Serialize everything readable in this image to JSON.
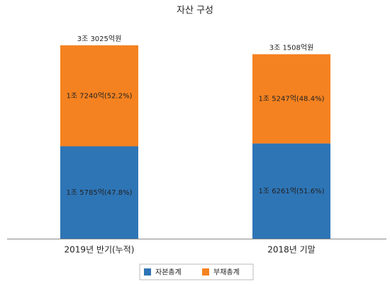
{
  "chart_data": {
    "type": "stacked-bar",
    "title": "자산 구성",
    "categories": [
      "2019년 반기(누적)",
      "2018년 기말"
    ],
    "series": [
      {
        "name": "자본총계",
        "color": "#2e75b6",
        "values": [
          15785,
          16261
        ],
        "value_labels": [
          "1조 5785억(47.8%)",
          "1조 6261억(51.6%)"
        ]
      },
      {
        "name": "부채총계",
        "color": "#f58220",
        "values": [
          17240,
          15247
        ],
        "value_labels": [
          "1조 7240억(52.2%)",
          "1조 5247억(48.4%)"
        ]
      }
    ],
    "totals": [
      33025,
      31508
    ],
    "total_labels": [
      "3조 3025억원",
      "3조 1508억원"
    ],
    "legend": "bottom"
  }
}
